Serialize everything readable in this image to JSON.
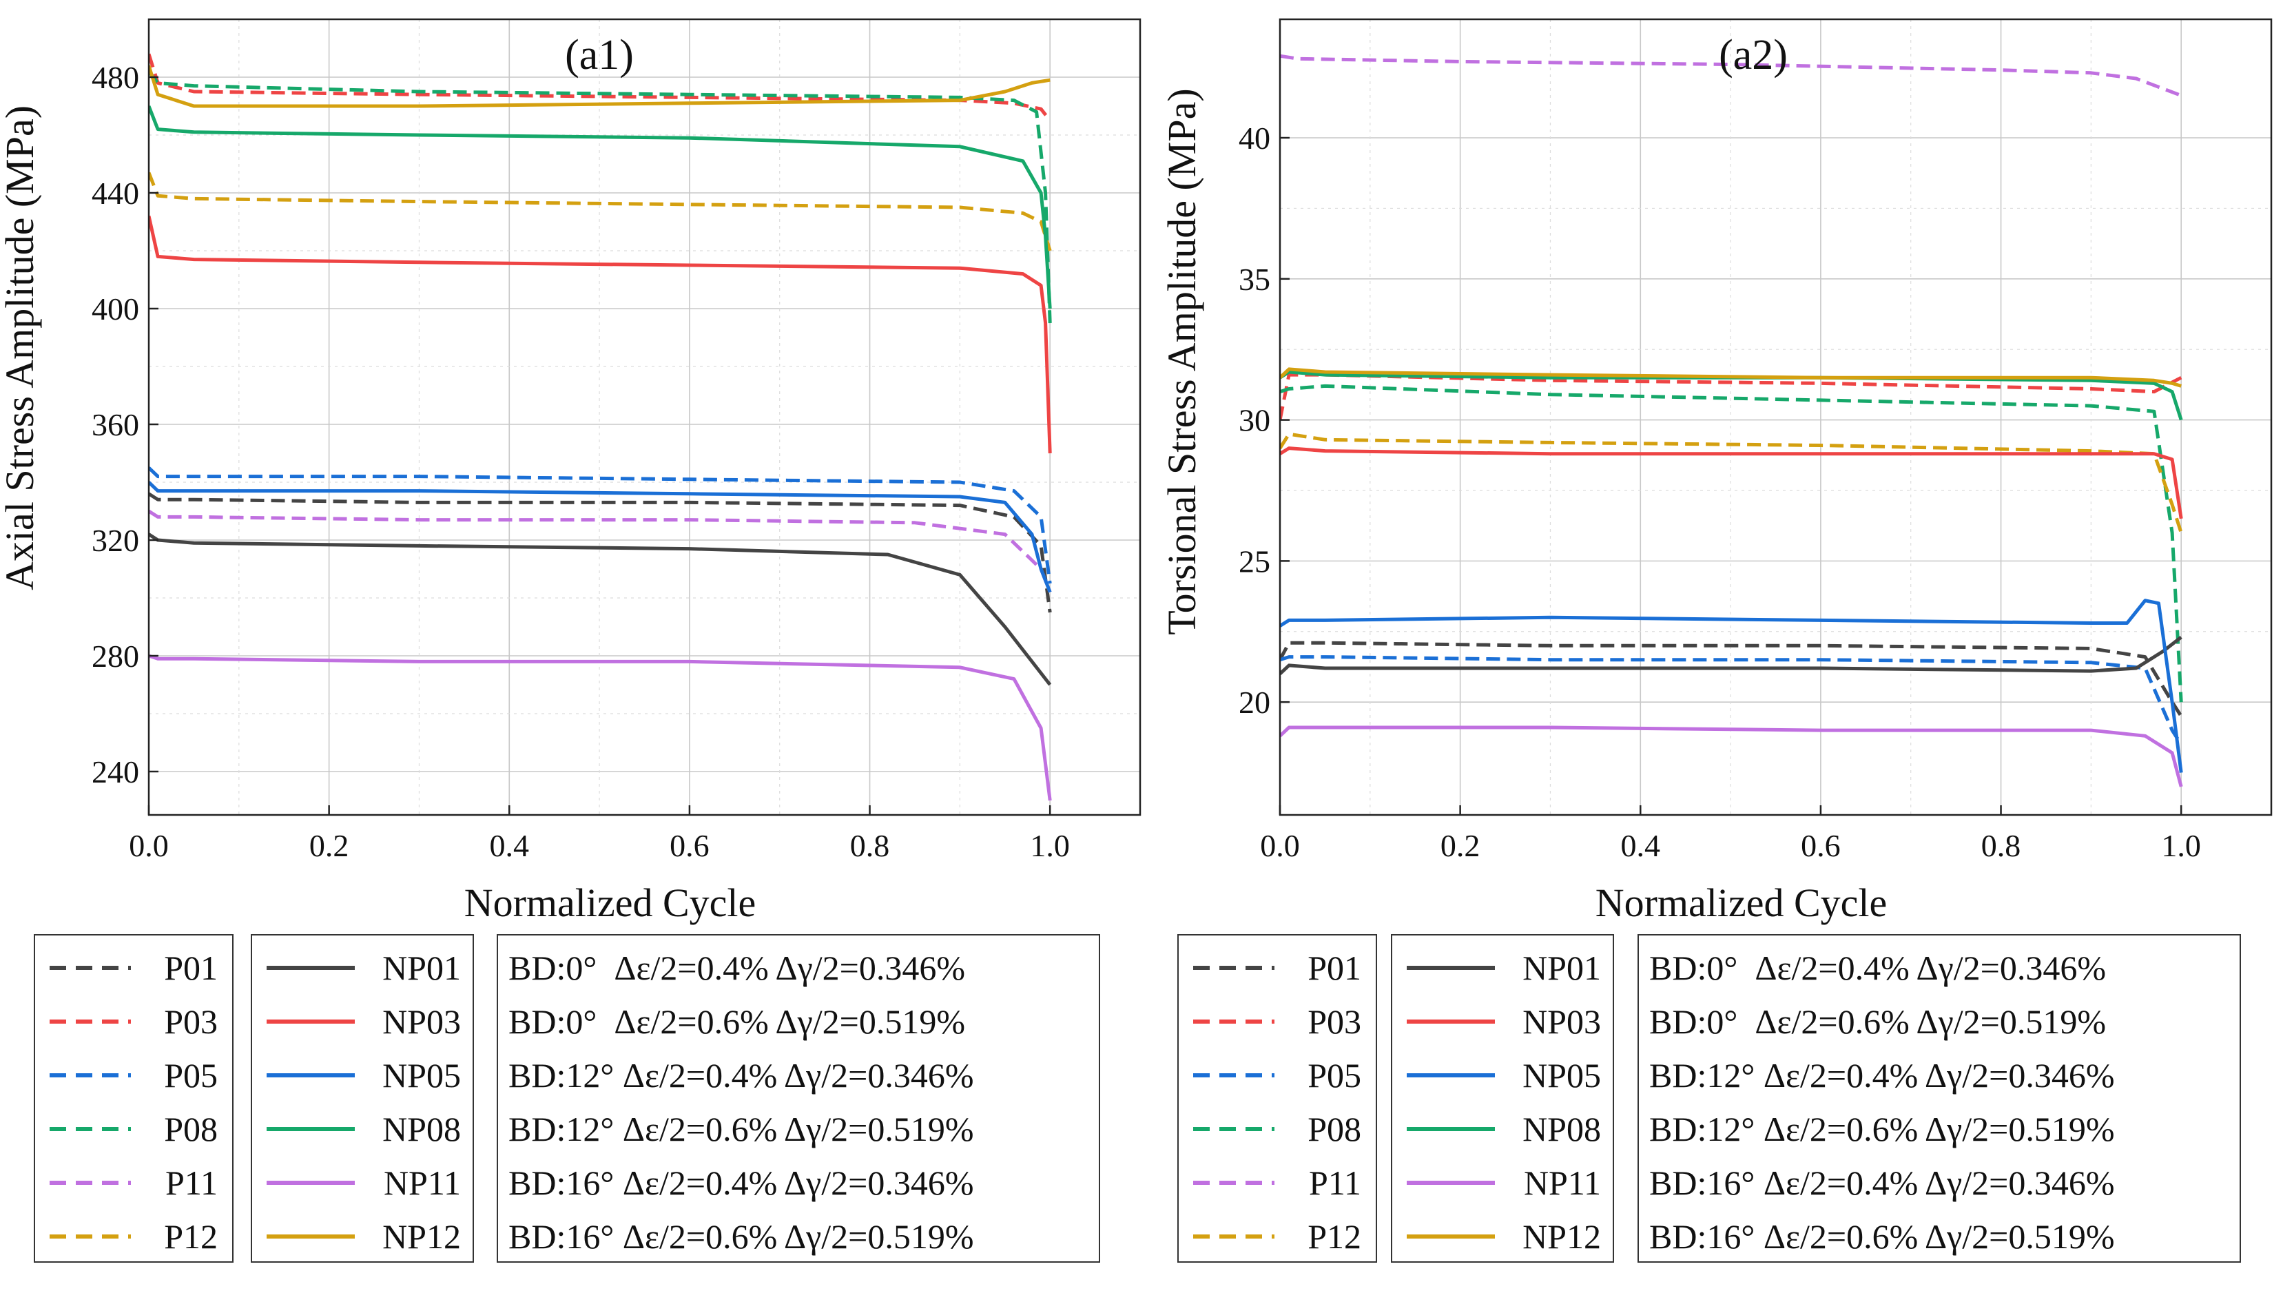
{
  "chart_data": [
    {
      "type": "line",
      "panel_label": "(a1)",
      "xlabel": "Normalized Cycle",
      "ylabel": "Axial Stress Amplitude (MPa)",
      "xlim": [
        0.0,
        1.1
      ],
      "ylim": [
        225,
        500
      ],
      "xticks": [
        0.0,
        0.2,
        0.4,
        0.6,
        0.8,
        1.0
      ],
      "xtick_labels": [
        "0.0",
        "0.2",
        "0.4",
        "0.6",
        "0.8",
        "1.0"
      ],
      "yticks": [
        240,
        280,
        320,
        360,
        400,
        440,
        480
      ],
      "ytick_labels": [
        "240",
        "280",
        "320",
        "360",
        "400",
        "440",
        "480"
      ],
      "grid": true,
      "series": [
        {
          "name": "P01",
          "color": "#444444",
          "style": "dashed",
          "x": [
            0,
            0.01,
            0.05,
            0.3,
            0.6,
            0.9,
            0.96,
            0.99,
            1.0
          ],
          "y": [
            336,
            334,
            334,
            333,
            333,
            332,
            328,
            318,
            295
          ]
        },
        {
          "name": "P03",
          "color": "#ee4444",
          "style": "dashed",
          "x": [
            0,
            0.01,
            0.05,
            0.3,
            0.6,
            0.9,
            0.96,
            0.99,
            1.0
          ],
          "y": [
            488,
            478,
            475,
            474,
            473,
            472,
            471,
            469,
            465
          ]
        },
        {
          "name": "P05",
          "color": "#1a6fd6",
          "style": "dashed",
          "x": [
            0,
            0.01,
            0.05,
            0.3,
            0.6,
            0.9,
            0.96,
            0.99,
            1.0
          ],
          "y": [
            345,
            342,
            342,
            342,
            341,
            340,
            337,
            328,
            305
          ]
        },
        {
          "name": "P08",
          "color": "#16a86a",
          "style": "dashed",
          "x": [
            0,
            0.01,
            0.05,
            0.3,
            0.6,
            0.9,
            0.96,
            0.985,
            0.995,
            1.0
          ],
          "y": [
            482,
            478,
            477,
            475,
            474,
            473,
            472,
            468,
            440,
            395
          ]
        },
        {
          "name": "P11",
          "color": "#c070e0",
          "style": "dashed",
          "x": [
            0,
            0.01,
            0.05,
            0.3,
            0.6,
            0.85,
            0.95,
            0.99,
            1.0
          ],
          "y": [
            330,
            328,
            328,
            327,
            327,
            326,
            322,
            310,
            302
          ]
        },
        {
          "name": "P12",
          "color": "#d4a010",
          "style": "dashed",
          "x": [
            0,
            0.01,
            0.05,
            0.3,
            0.6,
            0.9,
            0.97,
            0.99,
            1.0
          ],
          "y": [
            447,
            439,
            438,
            437,
            436,
            435,
            433,
            430,
            420
          ]
        },
        {
          "name": "NP01",
          "color": "#444444",
          "style": "solid",
          "x": [
            0,
            0.01,
            0.05,
            0.3,
            0.6,
            0.82,
            0.9,
            0.95,
            1.0
          ],
          "y": [
            322,
            320,
            319,
            318,
            317,
            315,
            308,
            290,
            270
          ]
        },
        {
          "name": "NP03",
          "color": "#ee4444",
          "style": "solid",
          "x": [
            0,
            0.01,
            0.05,
            0.3,
            0.6,
            0.9,
            0.97,
            0.99,
            0.995,
            1.0
          ],
          "y": [
            432,
            418,
            417,
            416,
            415,
            414,
            412,
            408,
            395,
            350
          ]
        },
        {
          "name": "NP05",
          "color": "#1a6fd6",
          "style": "solid",
          "x": [
            0,
            0.01,
            0.05,
            0.3,
            0.6,
            0.9,
            0.95,
            0.98,
            0.99,
            1.0
          ],
          "y": [
            340,
            337,
            337,
            337,
            336,
            335,
            333,
            322,
            310,
            302
          ]
        },
        {
          "name": "NP08",
          "color": "#16a86a",
          "style": "solid",
          "x": [
            0,
            0.01,
            0.05,
            0.3,
            0.6,
            0.9,
            0.97,
            0.99,
            0.995,
            1.0
          ],
          "y": [
            470,
            462,
            461,
            460,
            459,
            456,
            451,
            440,
            425,
            400
          ]
        },
        {
          "name": "NP11",
          "color": "#c070e0",
          "style": "solid",
          "x": [
            0,
            0.01,
            0.05,
            0.3,
            0.6,
            0.9,
            0.96,
            0.99,
            1.0
          ],
          "y": [
            280,
            279,
            279,
            278,
            278,
            276,
            272,
            255,
            230
          ]
        },
        {
          "name": "NP12",
          "color": "#d4a010",
          "style": "solid",
          "x": [
            0,
            0.01,
            0.05,
            0.3,
            0.6,
            0.9,
            0.95,
            0.98,
            1.0
          ],
          "y": [
            484,
            474,
            470,
            470,
            471,
            472,
            475,
            478,
            479
          ]
        }
      ]
    },
    {
      "type": "line",
      "panel_label": "(a2)",
      "xlabel": "Normalized Cycle",
      "ylabel": "Torsional Stress Amplitude (MPa)",
      "xlim": [
        0.0,
        1.1
      ],
      "ylim": [
        16,
        44.2
      ],
      "xticks": [
        0.0,
        0.2,
        0.4,
        0.6,
        0.8,
        1.0
      ],
      "xtick_labels": [
        "0.0",
        "0.2",
        "0.4",
        "0.6",
        "0.8",
        "1.0"
      ],
      "yticks": [
        20,
        25,
        30,
        35,
        40
      ],
      "ytick_labels": [
        "20",
        "25",
        "30",
        "35",
        "40"
      ],
      "grid": true,
      "series": [
        {
          "name": "P01",
          "color": "#444444",
          "style": "dashed",
          "x": [
            0,
            0.01,
            0.05,
            0.3,
            0.6,
            0.9,
            0.96,
            0.99,
            1.0
          ],
          "y": [
            21.5,
            22.1,
            22.1,
            22.0,
            22.0,
            21.9,
            21.6,
            20.0,
            19.5
          ]
        },
        {
          "name": "P03",
          "color": "#ee4444",
          "style": "dashed",
          "x": [
            0,
            0.01,
            0.05,
            0.3,
            0.6,
            0.9,
            0.97,
            1.0
          ],
          "y": [
            30.0,
            31.6,
            31.6,
            31.4,
            31.3,
            31.1,
            31.0,
            31.5
          ]
        },
        {
          "name": "P05",
          "color": "#1a6fd6",
          "style": "dashed",
          "x": [
            0,
            0.01,
            0.05,
            0.3,
            0.6,
            0.9,
            0.96,
            0.99,
            1.0
          ],
          "y": [
            21.5,
            21.6,
            21.6,
            21.5,
            21.5,
            21.4,
            21.2,
            19.0,
            18.5
          ]
        },
        {
          "name": "P08",
          "color": "#16a86a",
          "style": "dashed",
          "x": [
            0,
            0.01,
            0.05,
            0.3,
            0.6,
            0.9,
            0.97,
            0.99,
            1.0
          ],
          "y": [
            31.0,
            31.1,
            31.2,
            30.9,
            30.7,
            30.5,
            30.3,
            26.0,
            20.0
          ]
        },
        {
          "name": "P11",
          "color": "#c070e0",
          "style": "dashed",
          "x": [
            0,
            0.02,
            0.2,
            0.5,
            0.8,
            0.9,
            0.95,
            1.0
          ],
          "y": [
            42.9,
            42.8,
            42.7,
            42.6,
            42.4,
            42.3,
            42.1,
            41.5
          ]
        },
        {
          "name": "P12",
          "color": "#d4a010",
          "style": "dashed",
          "x": [
            0,
            0.01,
            0.05,
            0.3,
            0.6,
            0.9,
            0.97,
            0.99,
            1.0
          ],
          "y": [
            29.0,
            29.5,
            29.3,
            29.2,
            29.1,
            28.9,
            28.8,
            27.0,
            26.0
          ]
        },
        {
          "name": "NP01",
          "color": "#444444",
          "style": "solid",
          "x": [
            0,
            0.01,
            0.05,
            0.3,
            0.6,
            0.9,
            0.95,
            0.98,
            1.0
          ],
          "y": [
            21.0,
            21.3,
            21.2,
            21.2,
            21.2,
            21.1,
            21.2,
            21.8,
            22.3
          ]
        },
        {
          "name": "NP03",
          "color": "#ee4444",
          "style": "solid",
          "x": [
            0,
            0.01,
            0.05,
            0.3,
            0.6,
            0.9,
            0.97,
            0.99,
            1.0
          ],
          "y": [
            28.8,
            29.0,
            28.9,
            28.8,
            28.8,
            28.8,
            28.8,
            28.6,
            26.5
          ]
        },
        {
          "name": "NP05",
          "color": "#1a6fd6",
          "style": "solid",
          "x": [
            0,
            0.01,
            0.05,
            0.3,
            0.6,
            0.9,
            0.94,
            0.96,
            0.975,
            0.99,
            1.0
          ],
          "y": [
            22.7,
            22.9,
            22.9,
            23.0,
            22.9,
            22.8,
            22.8,
            23.6,
            23.5,
            20.0,
            17.5
          ]
        },
        {
          "name": "NP08",
          "color": "#16a86a",
          "style": "solid",
          "x": [
            0,
            0.01,
            0.05,
            0.3,
            0.6,
            0.9,
            0.97,
            0.99,
            1.0
          ],
          "y": [
            31.5,
            31.7,
            31.6,
            31.5,
            31.5,
            31.4,
            31.3,
            31.0,
            30.0
          ]
        },
        {
          "name": "NP11",
          "color": "#c070e0",
          "style": "solid",
          "x": [
            0,
            0.01,
            0.05,
            0.3,
            0.6,
            0.9,
            0.96,
            0.99,
            1.0
          ],
          "y": [
            18.8,
            19.1,
            19.1,
            19.1,
            19.0,
            19.0,
            18.8,
            18.2,
            17.0
          ]
        },
        {
          "name": "NP12",
          "color": "#d4a010",
          "style": "solid",
          "x": [
            0,
            0.01,
            0.05,
            0.3,
            0.6,
            0.9,
            0.97,
            0.99,
            1.0
          ],
          "y": [
            31.5,
            31.8,
            31.7,
            31.6,
            31.5,
            31.5,
            31.4,
            31.3,
            31.2
          ]
        }
      ]
    }
  ],
  "legend": {
    "specimens": [
      "P01",
      "P03",
      "P05",
      "P08",
      "P11",
      "P12"
    ],
    "specimens_np": [
      "NP01",
      "NP03",
      "NP05",
      "NP08",
      "NP11",
      "NP12"
    ],
    "conditions": [
      "BD:0°  Δε/2=0.4% Δγ/2=0.346%",
      "BD:0°  Δε/2=0.6% Δγ/2=0.519%",
      "BD:12° Δε/2=0.4% Δγ/2=0.346%",
      "BD:12° Δε/2=0.6% Δγ/2=0.519%",
      "BD:16° Δε/2=0.4% Δγ/2=0.346%",
      "BD:16° Δε/2=0.6% Δγ/2=0.519%"
    ],
    "colors": [
      "#444444",
      "#ee4444",
      "#1a6fd6",
      "#16a86a",
      "#c070e0",
      "#d4a010"
    ]
  }
}
